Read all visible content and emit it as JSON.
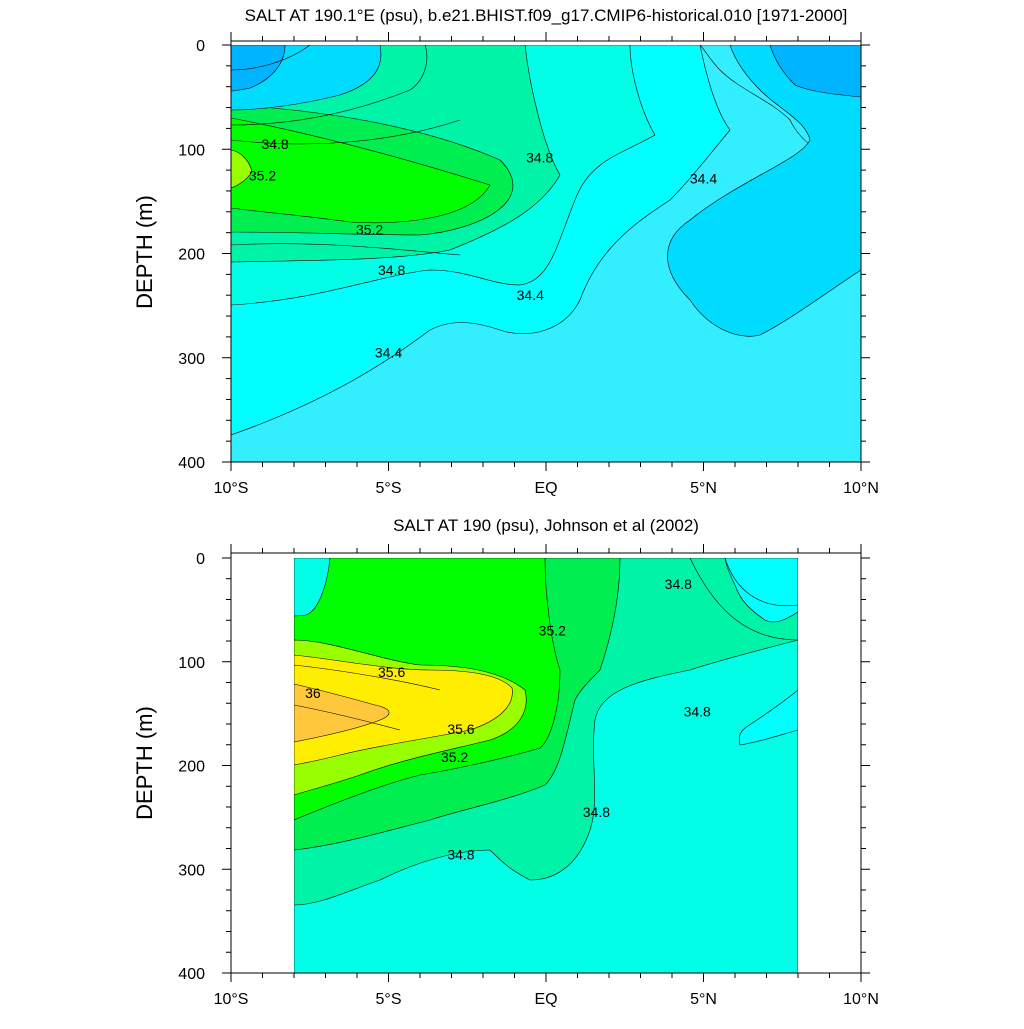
{
  "chart_data": [
    {
      "type": "contour",
      "title": "SALT AT 190.1°E (psu), b.e21.BHIST.f09_g17.CMIP6-historical.010 [1971-2000]",
      "ylabel": "DEPTH (m)",
      "xlabel": "",
      "x_ticks": [
        "10°S",
        "5°S",
        "EQ",
        "5°N",
        "10°N"
      ],
      "x_tick_values": [
        -10,
        -5,
        0,
        5,
        10
      ],
      "y_ticks": [
        "0",
        "100",
        "200",
        "300",
        "400"
      ],
      "y_tick_values": [
        0,
        100,
        200,
        300,
        400
      ],
      "xlim": [
        -10,
        10
      ],
      "ylim": [
        400,
        0
      ],
      "data_extent_x": [
        -10,
        10
      ],
      "contour_interval": 0.2,
      "contour_labels": [
        {
          "text": "34.8",
          "lat": -8.6,
          "depth": 95
        },
        {
          "text": "35.2",
          "lat": -9.0,
          "depth": 125
        },
        {
          "text": "35.2",
          "lat": -5.6,
          "depth": 177
        },
        {
          "text": "34.8",
          "lat": -0.2,
          "depth": 108
        },
        {
          "text": "34.4",
          "lat": 5.0,
          "depth": 128
        },
        {
          "text": "34.8",
          "lat": -4.9,
          "depth": 216
        },
        {
          "text": "34.4",
          "lat": -0.5,
          "depth": 240
        },
        {
          "text": "34.4",
          "lat": -5.0,
          "depth": 295
        }
      ]
    },
    {
      "type": "contour",
      "title": "SALT AT 190 (psu), Johnson et al (2002)",
      "ylabel": "DEPTH (m)",
      "xlabel": "",
      "x_ticks": [
        "10°S",
        "5°S",
        "EQ",
        "5°N",
        "10°N"
      ],
      "x_tick_values": [
        -10,
        -5,
        0,
        5,
        10
      ],
      "y_ticks": [
        "0",
        "100",
        "200",
        "300",
        "400"
      ],
      "y_tick_values": [
        0,
        100,
        200,
        300,
        400
      ],
      "xlim": [
        -10,
        10
      ],
      "ylim": [
        400,
        0
      ],
      "data_extent_x": [
        -8,
        8
      ],
      "contour_interval": 0.2,
      "contour_labels": [
        {
          "text": "36",
          "lat": -7.4,
          "depth": 130
        },
        {
          "text": "35.6",
          "lat": -4.9,
          "depth": 110
        },
        {
          "text": "35.6",
          "lat": -2.7,
          "depth": 165
        },
        {
          "text": "35.2",
          "lat": -2.9,
          "depth": 192
        },
        {
          "text": "35.2",
          "lat": 0.2,
          "depth": 70
        },
        {
          "text": "34.8",
          "lat": 4.2,
          "depth": 25
        },
        {
          "text": "34.8",
          "lat": 4.8,
          "depth": 148
        },
        {
          "text": "34.8",
          "lat": 1.6,
          "depth": 245
        },
        {
          "text": "34.8",
          "lat": -2.7,
          "depth": 286
        }
      ]
    }
  ],
  "colors": {
    "s34_0": "#00b4ff",
    "s34_2": "#00dcff",
    "s34_4": "#33eeff",
    "s34_6": "#00ffff",
    "s34_8": "#00ffe6",
    "s35_0": "#00f4a8",
    "s35_2": "#00ee50",
    "s35_4": "#00ff00",
    "s35_6": "#99ff00",
    "s35_8": "#ffee00",
    "s36_0": "#ffc83c"
  }
}
